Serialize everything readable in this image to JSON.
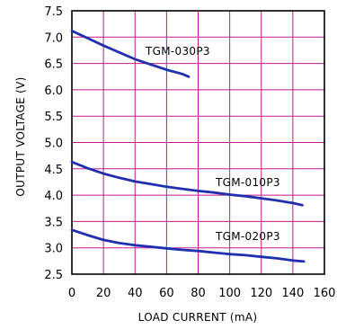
{
  "chart_data": {
    "type": "line",
    "title": "",
    "xlabel": "LOAD CURRENT (mA)",
    "ylabel": "OUTPUT VOLTAGE (V)",
    "xlim": [
      0,
      160
    ],
    "ylim": [
      2.5,
      7.5
    ],
    "x_ticks": [
      0,
      20,
      40,
      60,
      80,
      100,
      120,
      140,
      160
    ],
    "y_ticks": [
      "2.5",
      "3.0",
      "3.5",
      "4.0",
      "4.5",
      "5.0",
      "5.5",
      "6.0",
      "6.5",
      "7.0",
      "7.5"
    ],
    "grid": true,
    "grid_color": "#c2188b",
    "line_color": "#1f2fae",
    "series": [
      {
        "name": "TGM-030P3",
        "x": [
          0,
          10,
          20,
          30,
          40,
          50,
          60,
          70,
          74
        ],
        "y": [
          7.12,
          6.98,
          6.84,
          6.71,
          6.58,
          6.48,
          6.38,
          6.3,
          6.25
        ]
      },
      {
        "name": "TGM-010P3",
        "x": [
          0,
          10,
          20,
          30,
          40,
          50,
          60,
          70,
          80,
          90,
          100,
          110,
          120,
          130,
          140,
          146
        ],
        "y": [
          4.63,
          4.51,
          4.41,
          4.33,
          4.26,
          4.21,
          4.16,
          4.12,
          4.08,
          4.05,
          4.01,
          3.98,
          3.94,
          3.9,
          3.85,
          3.81
        ]
      },
      {
        "name": "TGM-020P3",
        "x": [
          0,
          10,
          20,
          30,
          40,
          50,
          60,
          70,
          80,
          90,
          100,
          110,
          120,
          130,
          140,
          147
        ],
        "y": [
          3.34,
          3.24,
          3.15,
          3.09,
          3.05,
          3.02,
          2.99,
          2.96,
          2.94,
          2.91,
          2.88,
          2.86,
          2.83,
          2.8,
          2.76,
          2.74
        ]
      }
    ]
  }
}
